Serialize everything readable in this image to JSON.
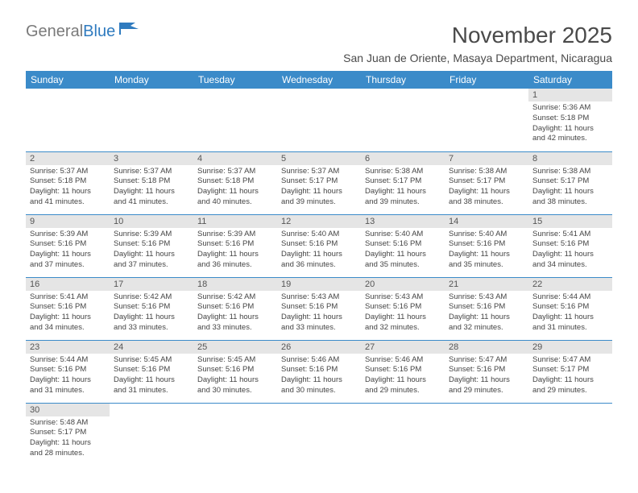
{
  "logo": {
    "part1": "General",
    "part2": "Blue"
  },
  "title": "November 2025",
  "subtitle": "San Juan de Oriente, Masaya Department, Nicaragua",
  "colors": {
    "header_bg": "#3b8bc9",
    "header_text": "#ffffff",
    "daynum_bg": "#e5e5e5",
    "cell_border": "#3b8bc9",
    "logo_gray": "#7a7a7a",
    "logo_blue": "#2f7bbf"
  },
  "weekdays": [
    "Sunday",
    "Monday",
    "Tuesday",
    "Wednesday",
    "Thursday",
    "Friday",
    "Saturday"
  ],
  "weeks": [
    [
      null,
      null,
      null,
      null,
      null,
      null,
      {
        "n": "1",
        "sr": "5:36 AM",
        "ss": "5:18 PM",
        "dl": "11 hours and 42 minutes."
      }
    ],
    [
      {
        "n": "2",
        "sr": "5:37 AM",
        "ss": "5:18 PM",
        "dl": "11 hours and 41 minutes."
      },
      {
        "n": "3",
        "sr": "5:37 AM",
        "ss": "5:18 PM",
        "dl": "11 hours and 41 minutes."
      },
      {
        "n": "4",
        "sr": "5:37 AM",
        "ss": "5:18 PM",
        "dl": "11 hours and 40 minutes."
      },
      {
        "n": "5",
        "sr": "5:37 AM",
        "ss": "5:17 PM",
        "dl": "11 hours and 39 minutes."
      },
      {
        "n": "6",
        "sr": "5:38 AM",
        "ss": "5:17 PM",
        "dl": "11 hours and 39 minutes."
      },
      {
        "n": "7",
        "sr": "5:38 AM",
        "ss": "5:17 PM",
        "dl": "11 hours and 38 minutes."
      },
      {
        "n": "8",
        "sr": "5:38 AM",
        "ss": "5:17 PM",
        "dl": "11 hours and 38 minutes."
      }
    ],
    [
      {
        "n": "9",
        "sr": "5:39 AM",
        "ss": "5:16 PM",
        "dl": "11 hours and 37 minutes."
      },
      {
        "n": "10",
        "sr": "5:39 AM",
        "ss": "5:16 PM",
        "dl": "11 hours and 37 minutes."
      },
      {
        "n": "11",
        "sr": "5:39 AM",
        "ss": "5:16 PM",
        "dl": "11 hours and 36 minutes."
      },
      {
        "n": "12",
        "sr": "5:40 AM",
        "ss": "5:16 PM",
        "dl": "11 hours and 36 minutes."
      },
      {
        "n": "13",
        "sr": "5:40 AM",
        "ss": "5:16 PM",
        "dl": "11 hours and 35 minutes."
      },
      {
        "n": "14",
        "sr": "5:40 AM",
        "ss": "5:16 PM",
        "dl": "11 hours and 35 minutes."
      },
      {
        "n": "15",
        "sr": "5:41 AM",
        "ss": "5:16 PM",
        "dl": "11 hours and 34 minutes."
      }
    ],
    [
      {
        "n": "16",
        "sr": "5:41 AM",
        "ss": "5:16 PM",
        "dl": "11 hours and 34 minutes."
      },
      {
        "n": "17",
        "sr": "5:42 AM",
        "ss": "5:16 PM",
        "dl": "11 hours and 33 minutes."
      },
      {
        "n": "18",
        "sr": "5:42 AM",
        "ss": "5:16 PM",
        "dl": "11 hours and 33 minutes."
      },
      {
        "n": "19",
        "sr": "5:43 AM",
        "ss": "5:16 PM",
        "dl": "11 hours and 33 minutes."
      },
      {
        "n": "20",
        "sr": "5:43 AM",
        "ss": "5:16 PM",
        "dl": "11 hours and 32 minutes."
      },
      {
        "n": "21",
        "sr": "5:43 AM",
        "ss": "5:16 PM",
        "dl": "11 hours and 32 minutes."
      },
      {
        "n": "22",
        "sr": "5:44 AM",
        "ss": "5:16 PM",
        "dl": "11 hours and 31 minutes."
      }
    ],
    [
      {
        "n": "23",
        "sr": "5:44 AM",
        "ss": "5:16 PM",
        "dl": "11 hours and 31 minutes."
      },
      {
        "n": "24",
        "sr": "5:45 AM",
        "ss": "5:16 PM",
        "dl": "11 hours and 31 minutes."
      },
      {
        "n": "25",
        "sr": "5:45 AM",
        "ss": "5:16 PM",
        "dl": "11 hours and 30 minutes."
      },
      {
        "n": "26",
        "sr": "5:46 AM",
        "ss": "5:16 PM",
        "dl": "11 hours and 30 minutes."
      },
      {
        "n": "27",
        "sr": "5:46 AM",
        "ss": "5:16 PM",
        "dl": "11 hours and 29 minutes."
      },
      {
        "n": "28",
        "sr": "5:47 AM",
        "ss": "5:16 PM",
        "dl": "11 hours and 29 minutes."
      },
      {
        "n": "29",
        "sr": "5:47 AM",
        "ss": "5:17 PM",
        "dl": "11 hours and 29 minutes."
      }
    ],
    [
      {
        "n": "30",
        "sr": "5:48 AM",
        "ss": "5:17 PM",
        "dl": "11 hours and 28 minutes."
      },
      null,
      null,
      null,
      null,
      null,
      null
    ]
  ],
  "labels": {
    "sunrise": "Sunrise: ",
    "sunset": "Sunset: ",
    "daylight": "Daylight: "
  }
}
